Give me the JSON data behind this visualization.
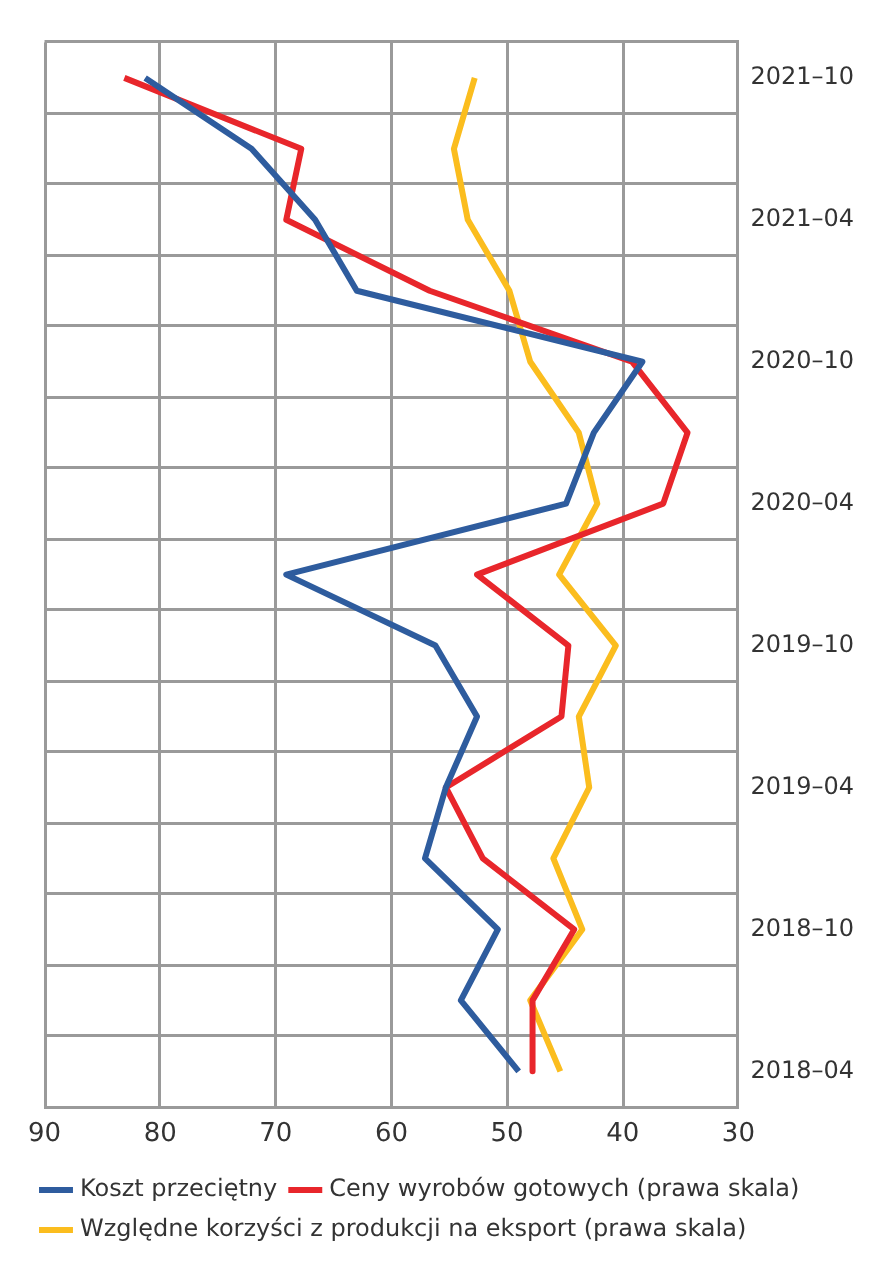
{
  "chart_data": {
    "type": "line",
    "orientation": "horizontal",
    "categories": [
      "2021–10",
      null,
      "2021–04",
      null,
      "2020–10",
      null,
      "2020–04",
      null,
      "2019–10",
      null,
      "2019–04",
      null,
      "2018–10",
      null,
      "2018–04"
    ],
    "series": [
      {
        "name": "Koszt przeciętny",
        "color": "#2e5c9e",
        "values": [
          81.3,
          72.1,
          66.6,
          63.0,
          38.3,
          42.5,
          44.9,
          69.1,
          56.2,
          52.6,
          55.3,
          57.1,
          50.8,
          54.0,
          49.0
        ]
      },
      {
        "name": "Ceny wyrobów gotowych (prawa skala)",
        "color": "#e8262b",
        "values": [
          83.1,
          67.8,
          69.1,
          56.7,
          39.2,
          34.4,
          36.5,
          52.6,
          44.7,
          45.3,
          55.3,
          52.1,
          44.2,
          47.8,
          47.8
        ]
      },
      {
        "name": "Względne korzyści z produkcji na eksport (prawa skala)",
        "color": "#fbbd1e",
        "values": [
          52.8,
          54.6,
          53.4,
          49.8,
          48.0,
          43.8,
          42.2,
          45.5,
          40.6,
          43.8,
          42.9,
          46.0,
          43.5,
          48.0,
          45.4
        ]
      }
    ],
    "xlim": [
      90,
      30
    ],
    "xticks": [
      90,
      80,
      70,
      60,
      50,
      40,
      30
    ],
    "grid": true,
    "legend": "bottom",
    "marker": "none",
    "line_style": "solid"
  }
}
